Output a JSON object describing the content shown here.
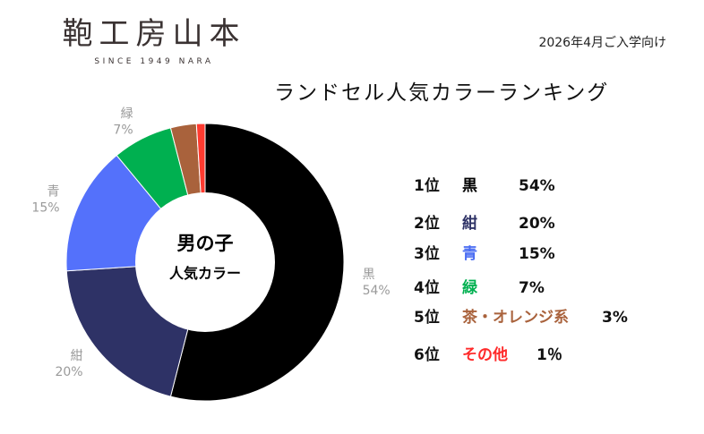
{
  "brand": {
    "logo_text": "鞄工房山本",
    "tagline": "SINCE 1949 NARA"
  },
  "header": {
    "season": "2026年4月ご入学向け",
    "title": "ランドセル人気カラーランキング"
  },
  "chart_data": {
    "type": "pie",
    "subtype": "donut",
    "center_label": [
      "男の子",
      "人気カラー"
    ],
    "slices": [
      {
        "label": "黒",
        "value": 54,
        "value_label": "54%",
        "color": "#000000"
      },
      {
        "label": "紺",
        "value": 20,
        "value_label": "20%",
        "color": "#2e3266"
      },
      {
        "label": "青",
        "value": 15,
        "value_label": "15%",
        "color": "#5471fb"
      },
      {
        "label": "緑",
        "value": 7,
        "value_label": "7%",
        "color": "#00b050"
      },
      {
        "label": "",
        "value": 3,
        "value_label": "",
        "color": "#a9623c"
      },
      {
        "label": "",
        "value": 1,
        "value_label": "",
        "color": "#ff3b30"
      }
    ]
  },
  "ranking": [
    {
      "pos": "1位",
      "name": "黒",
      "pct": "54%",
      "color": "#000000"
    },
    {
      "pos": "2位",
      "name": "紺",
      "pct": "20%",
      "color": "#2e3266"
    },
    {
      "pos": "3位",
      "name": "青",
      "pct": "15%",
      "color": "#4a6cf2"
    },
    {
      "pos": "4位",
      "name": "緑",
      "pct": "7%",
      "color": "#00b050"
    },
    {
      "pos": "5位",
      "name": "茶・オレンジ系",
      "pct": "3%",
      "color": "#a9623c"
    },
    {
      "pos": "6位",
      "name": "その他",
      "pct": "1％",
      "color": "#ff2a2a"
    }
  ],
  "colors": {
    "label_gray": "#9a9a9a"
  }
}
